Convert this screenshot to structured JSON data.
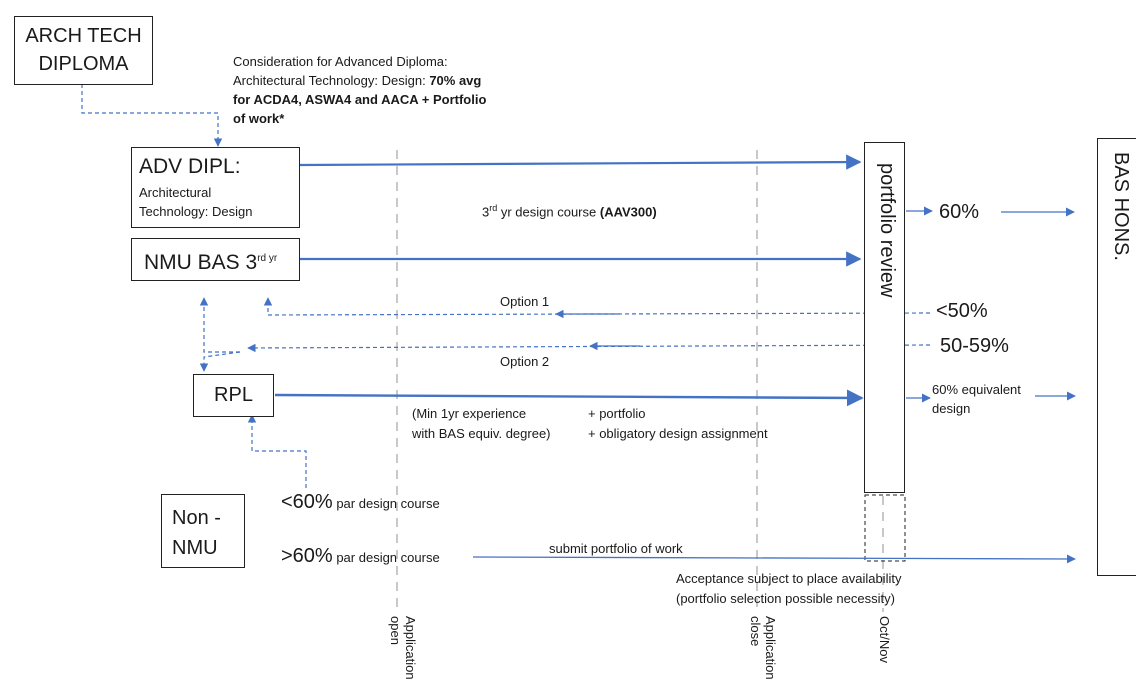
{
  "nodes": {
    "arch_tech_diploma": [
      "ARCH TECH",
      "DIPLOMA"
    ],
    "adv_dipl": {
      "title": "ADV DIPL:",
      "line1": "Architectural",
      "line2": "Technology: Design"
    },
    "nmu_bas": {
      "text": "NMU BAS 3",
      "sup": "rd yr"
    },
    "rpl": "RPL",
    "non_nmu": [
      "Non -",
      "NMU"
    ],
    "portfolio_review": "portfolio review",
    "bas_hons": "BAS HONS."
  },
  "notes": {
    "consideration_line1": "Consideration for Advanced Diploma:",
    "consideration_line2_plain": "Architectural Technology: Design: ",
    "consideration_line2_bold": "70% avg",
    "consideration_line3_bold": "for ACDA4, ASWA4 and AACA + Portfolio",
    "consideration_line4_bold": "of work*",
    "design_course_prefix": "3",
    "design_course_sup": "rd",
    "design_course_text": " yr design course ",
    "design_course_code": "(AAV300)",
    "rpl_req_left_1": "(Min 1yr experience",
    "rpl_req_left_2": "with BAS equiv. degree)",
    "rpl_req_right_1": "+  portfolio",
    "rpl_req_right_2": "+ obligatory design assignment",
    "acceptance_1": "Acceptance subject to place availability",
    "acceptance_2": "(portfolio selection possible necessity)",
    "submit_portfolio": "submit portfolio of work"
  },
  "outcomes": {
    "sixty": "60%",
    "below_fifty": "<50%",
    "fifty_fiftynine": "50-59%",
    "sixty_equiv_1": "60% equivalent",
    "sixty_equiv_2": "design",
    "option1": "Option 1",
    "option2": "Option 2",
    "lt60_big": "<60%",
    "lt60_small": " par design course",
    "gt60_big": ">60%",
    "gt60_small": " par design course"
  },
  "timeline": {
    "application_open": [
      "Application",
      "open"
    ],
    "application_close": [
      "Application",
      "close"
    ],
    "oct_nov": "Oct/Nov"
  },
  "colors": {
    "arrow": "#4472c4",
    "timeline_dash": "#c8c8c8",
    "box_border": "#222222"
  }
}
